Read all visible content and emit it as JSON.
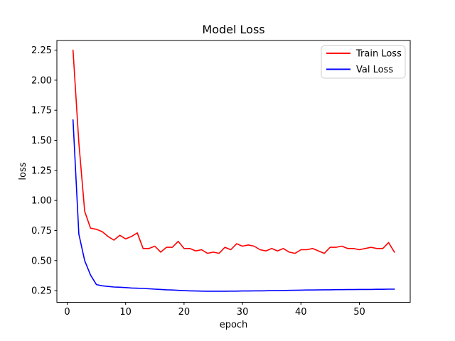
{
  "chart_data": {
    "type": "line",
    "title": "Model Loss",
    "xlabel": "epoch",
    "ylabel": "loss",
    "grid": false,
    "legend_position": "upper right",
    "xlim": [
      -1.76,
      58.7
    ],
    "ylim": [
      0.153,
      2.33
    ],
    "x_ticks": {
      "values": [
        0,
        10,
        20,
        30,
        40,
        50
      ],
      "labels": [
        "0",
        "10",
        "20",
        "30",
        "40",
        "50"
      ]
    },
    "y_ticks": {
      "values": [
        0.25,
        0.5,
        0.75,
        1.0,
        1.25,
        1.5,
        1.75,
        2.0,
        2.25
      ],
      "labels": [
        "0.25",
        "0.50",
        "0.75",
        "1.00",
        "1.25",
        "1.50",
        "1.75",
        "2.00",
        "2.25"
      ]
    },
    "x": [
      1,
      2,
      3,
      4,
      5,
      6,
      7,
      8,
      9,
      10,
      11,
      12,
      13,
      14,
      15,
      16,
      17,
      18,
      19,
      20,
      21,
      22,
      23,
      24,
      25,
      26,
      27,
      28,
      29,
      30,
      31,
      32,
      33,
      34,
      35,
      36,
      37,
      38,
      39,
      40,
      41,
      42,
      43,
      44,
      45,
      46,
      47,
      48,
      49,
      50,
      51,
      52,
      53,
      54,
      55,
      56
    ],
    "series": [
      {
        "name": "Train Loss",
        "color": "#ff0000",
        "values": [
          2.25,
          1.48,
          0.91,
          0.77,
          0.76,
          0.74,
          0.7,
          0.67,
          0.71,
          0.68,
          0.7,
          0.73,
          0.6,
          0.6,
          0.62,
          0.57,
          0.61,
          0.61,
          0.66,
          0.6,
          0.6,
          0.58,
          0.59,
          0.56,
          0.57,
          0.56,
          0.61,
          0.59,
          0.64,
          0.62,
          0.63,
          0.62,
          0.59,
          0.58,
          0.6,
          0.58,
          0.6,
          0.57,
          0.56,
          0.59,
          0.59,
          0.6,
          0.58,
          0.56,
          0.61,
          0.61,
          0.62,
          0.6,
          0.6,
          0.59,
          0.6,
          0.61,
          0.6,
          0.6,
          0.65,
          0.57
        ]
      },
      {
        "name": "Val Loss",
        "color": "#0000ff",
        "values": [
          1.67,
          0.72,
          0.5,
          0.38,
          0.3,
          0.29,
          0.285,
          0.28,
          0.278,
          0.275,
          0.272,
          0.27,
          0.268,
          0.265,
          0.262,
          0.26,
          0.257,
          0.255,
          0.252,
          0.25,
          0.248,
          0.247,
          0.246,
          0.245,
          0.245,
          0.245,
          0.245,
          0.246,
          0.246,
          0.247,
          0.247,
          0.248,
          0.248,
          0.249,
          0.25,
          0.25,
          0.251,
          0.252,
          0.253,
          0.254,
          0.255,
          0.255,
          0.256,
          0.257,
          0.257,
          0.258,
          0.258,
          0.259,
          0.259,
          0.26,
          0.26,
          0.26,
          0.261,
          0.261,
          0.262,
          0.262
        ]
      }
    ]
  }
}
